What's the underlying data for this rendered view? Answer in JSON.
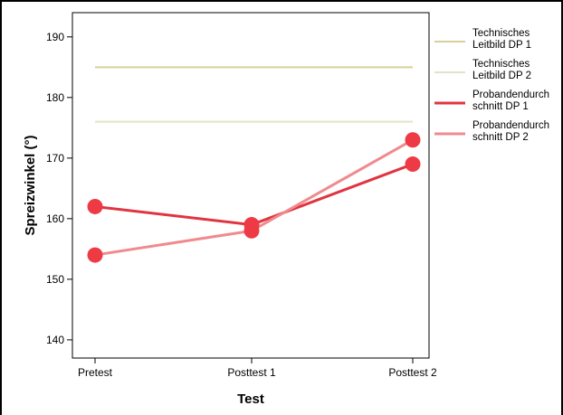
{
  "chart_data": {
    "type": "line",
    "xlabel": "Test",
    "ylabel": "Spreizwinkel (°)",
    "categories": [
      "Pretest",
      "Posttest 1",
      "Posttest 2"
    ],
    "ylim": [
      137,
      194
    ],
    "yticks": [
      140,
      150,
      160,
      170,
      180,
      190
    ],
    "grid": false,
    "legend_position": "right",
    "series": [
      {
        "name_lines": [
          "Technisches",
          "Leitbild DP 1"
        ],
        "values": [
          185,
          185,
          185
        ],
        "color": "#d9cf9e",
        "markers": false
      },
      {
        "name_lines": [
          "Technisches",
          "Leitbild DP 2"
        ],
        "values": [
          176,
          176,
          176
        ],
        "color": "#e3e3c8",
        "markers": false
      },
      {
        "name_lines": [
          "Probandendurch",
          "schnitt DP 1"
        ],
        "values": [
          162,
          159,
          169
        ],
        "color": "#e03540",
        "markers": true
      },
      {
        "name_lines": [
          "Probandendurch",
          "schnitt DP 2"
        ],
        "values": [
          154,
          158,
          173
        ],
        "color": "#f08a8e",
        "markers": true
      }
    ],
    "marker_color": "#ee3a45"
  }
}
